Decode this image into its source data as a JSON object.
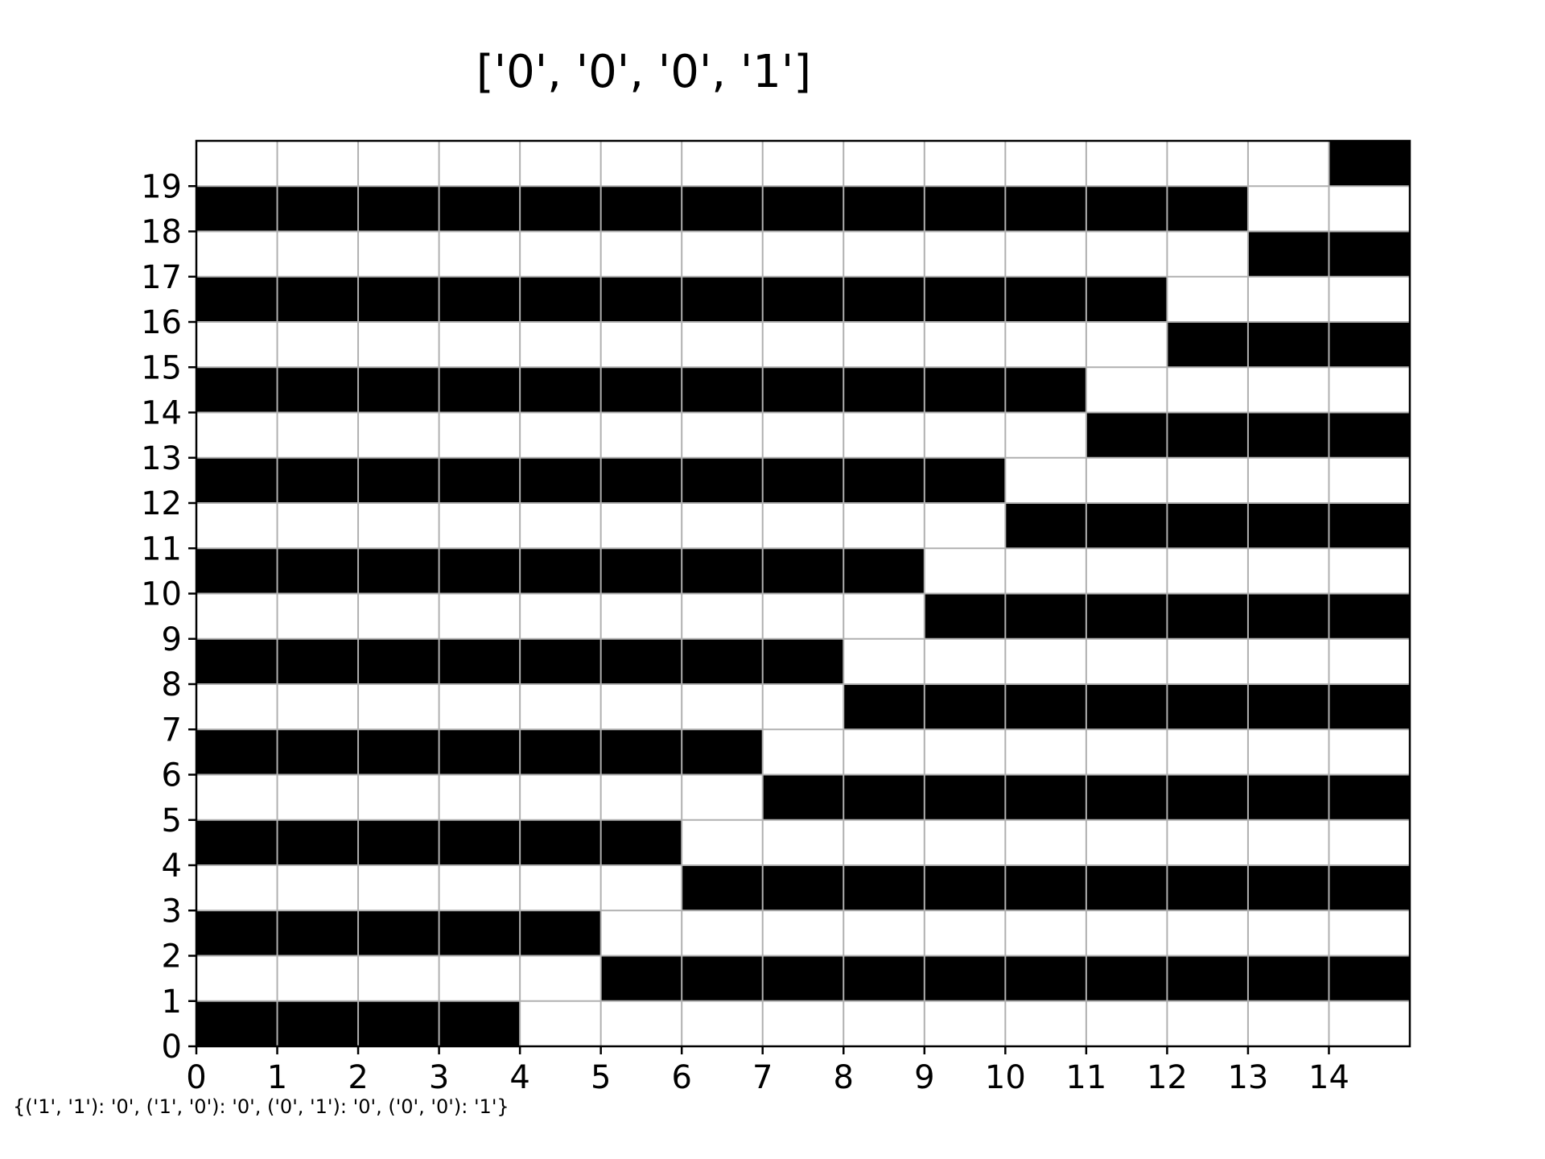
{
  "chart_data": {
    "type": "heatmap",
    "title": "['0', '0', '0', '1']",
    "caption": "{('1', '1'): '0', ('1', '0'): '0', ('0', '1'): '0', ('0', '0'): '1'}",
    "xlabel": "",
    "ylabel": "",
    "x_ticks": [
      "0",
      "1",
      "2",
      "3",
      "4",
      "5",
      "6",
      "7",
      "8",
      "9",
      "10",
      "11",
      "12",
      "13",
      "14"
    ],
    "y_ticks": [
      "0",
      "1",
      "2",
      "3",
      "4",
      "5",
      "6",
      "7",
      "8",
      "9",
      "10",
      "11",
      "12",
      "13",
      "14",
      "15",
      "16",
      "17",
      "18",
      "19"
    ],
    "xlim": [
      0,
      15
    ],
    "ylim": [
      0,
      20
    ],
    "grid": true,
    "colors": {
      "filled": "#000000",
      "empty": "#ffffff",
      "grid": "#b0b0b0",
      "frame": "#000000"
    },
    "rows": [
      [
        1,
        1,
        1,
        1,
        0,
        0,
        0,
        0,
        0,
        0,
        0,
        0,
        0,
        0,
        0
      ],
      [
        0,
        0,
        0,
        0,
        0,
        1,
        1,
        1,
        1,
        1,
        1,
        1,
        1,
        1,
        1
      ],
      [
        1,
        1,
        1,
        1,
        1,
        0,
        0,
        0,
        0,
        0,
        0,
        0,
        0,
        0,
        0
      ],
      [
        0,
        0,
        0,
        0,
        0,
        0,
        1,
        1,
        1,
        1,
        1,
        1,
        1,
        1,
        1
      ],
      [
        1,
        1,
        1,
        1,
        1,
        1,
        0,
        0,
        0,
        0,
        0,
        0,
        0,
        0,
        0
      ],
      [
        0,
        0,
        0,
        0,
        0,
        0,
        0,
        1,
        1,
        1,
        1,
        1,
        1,
        1,
        1
      ],
      [
        1,
        1,
        1,
        1,
        1,
        1,
        1,
        0,
        0,
        0,
        0,
        0,
        0,
        0,
        0
      ],
      [
        0,
        0,
        0,
        0,
        0,
        0,
        0,
        0,
        1,
        1,
        1,
        1,
        1,
        1,
        1
      ],
      [
        1,
        1,
        1,
        1,
        1,
        1,
        1,
        1,
        0,
        0,
        0,
        0,
        0,
        0,
        0
      ],
      [
        0,
        0,
        0,
        0,
        0,
        0,
        0,
        0,
        0,
        1,
        1,
        1,
        1,
        1,
        1
      ],
      [
        1,
        1,
        1,
        1,
        1,
        1,
        1,
        1,
        1,
        0,
        0,
        0,
        0,
        0,
        0
      ],
      [
        0,
        0,
        0,
        0,
        0,
        0,
        0,
        0,
        0,
        0,
        1,
        1,
        1,
        1,
        1
      ],
      [
        1,
        1,
        1,
        1,
        1,
        1,
        1,
        1,
        1,
        1,
        0,
        0,
        0,
        0,
        0
      ],
      [
        0,
        0,
        0,
        0,
        0,
        0,
        0,
        0,
        0,
        0,
        0,
        1,
        1,
        1,
        1
      ],
      [
        1,
        1,
        1,
        1,
        1,
        1,
        1,
        1,
        1,
        1,
        1,
        0,
        0,
        0,
        0
      ],
      [
        0,
        0,
        0,
        0,
        0,
        0,
        0,
        0,
        0,
        0,
        0,
        0,
        1,
        1,
        1
      ],
      [
        1,
        1,
        1,
        1,
        1,
        1,
        1,
        1,
        1,
        1,
        1,
        1,
        0,
        0,
        0
      ],
      [
        0,
        0,
        0,
        0,
        0,
        0,
        0,
        0,
        0,
        0,
        0,
        0,
        0,
        1,
        1
      ],
      [
        1,
        1,
        1,
        1,
        1,
        1,
        1,
        1,
        1,
        1,
        1,
        1,
        1,
        0,
        0
      ],
      [
        0,
        0,
        0,
        0,
        0,
        0,
        0,
        0,
        0,
        0,
        0,
        0,
        0,
        0,
        1
      ]
    ]
  }
}
